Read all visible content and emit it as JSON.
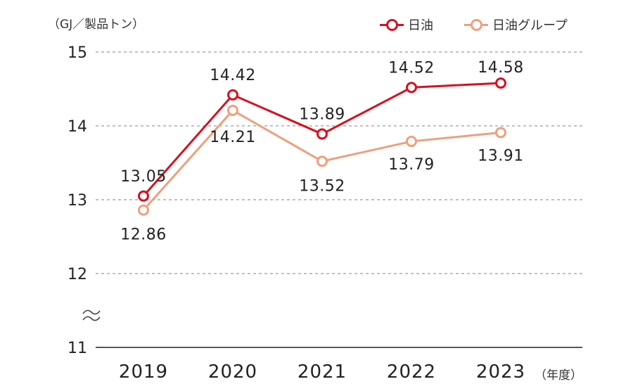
{
  "chart_data": {
    "type": "line",
    "unit_label": "（GJ／製品トン）",
    "x_unit_label": "（年度）",
    "categories": [
      "2019",
      "2020",
      "2021",
      "2022",
      "2023"
    ],
    "yticks": [
      "15",
      "14",
      "13",
      "12",
      "11"
    ],
    "ylim": [
      11,
      15
    ],
    "axis_break": true,
    "grid": true,
    "legend_position": "top-right",
    "series": [
      {
        "name": "日油",
        "color": "#d7101f",
        "values": [
          13.05,
          14.42,
          13.89,
          14.52,
          14.58
        ],
        "labels": [
          "13.05",
          "14.42",
          "13.89",
          "14.52",
          "14.58"
        ]
      },
      {
        "name": "日油グループ",
        "color": "#eca07e",
        "values": [
          12.86,
          14.21,
          13.52,
          13.79,
          13.91
        ],
        "labels": [
          "12.86",
          "14.21",
          "13.52",
          "13.79",
          "13.91"
        ]
      }
    ]
  }
}
